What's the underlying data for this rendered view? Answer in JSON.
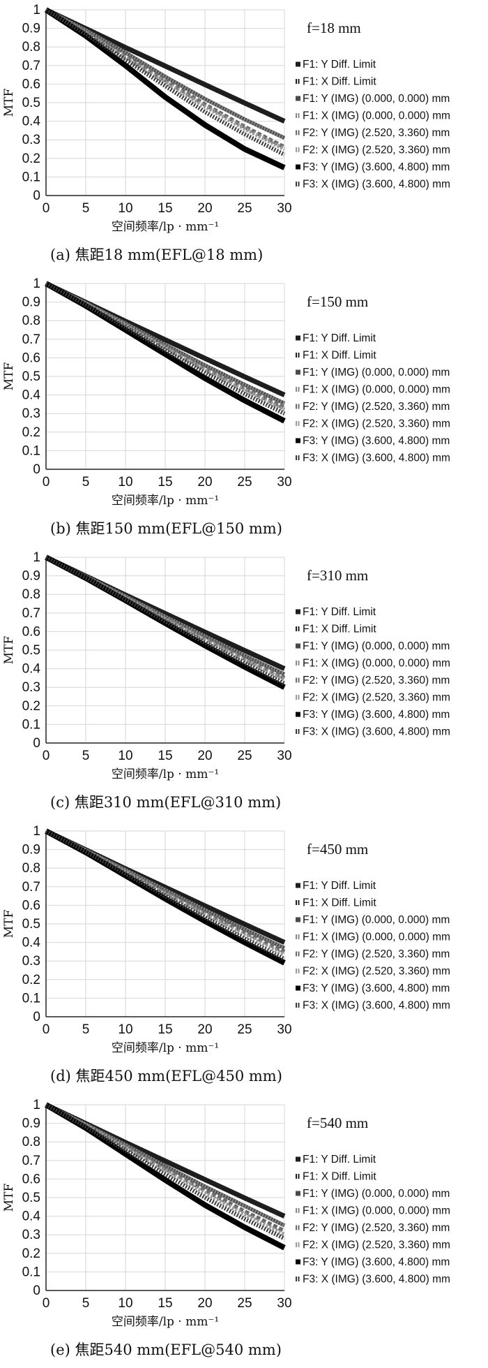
{
  "chart_data": [
    {
      "type": "line",
      "focal_label": "f=18 mm",
      "caption": "(a) 焦距18 mm(EFL@18 mm)",
      "xlabel": "空间频率/lp · mm⁻¹",
      "ylabel": "MTF",
      "xlim": [
        0,
        30
      ],
      "ylim": [
        0,
        1
      ],
      "xticks": [
        "0",
        "5",
        "10",
        "15",
        "20",
        "25",
        "30"
      ],
      "yticks": [
        "0",
        "0.1",
        "0.2",
        "0.3",
        "0.4",
        "0.5",
        "0.6",
        "0.7",
        "0.8",
        "0.9",
        "1"
      ],
      "grid": true,
      "legend_position": "right",
      "x": [
        0,
        5,
        10,
        15,
        20,
        25,
        30
      ],
      "series": [
        {
          "name": "F1: Y Diff. Limit",
          "values": [
            1,
            0.899,
            0.797,
            0.697,
            0.597,
            0.498,
            0.4
          ]
        },
        {
          "name": "F1: X Diff. Limit",
          "values": [
            1,
            0.899,
            0.797,
            0.697,
            0.597,
            0.498,
            0.4
          ]
        },
        {
          "name": "F1: Y (IMG) (0.000, 0.000) mm",
          "values": [
            1,
            0.89,
            0.77,
            0.64,
            0.52,
            0.41,
            0.31
          ]
        },
        {
          "name": "F1: X (IMG) (0.000, 0.000) mm",
          "values": [
            1,
            0.89,
            0.77,
            0.64,
            0.52,
            0.41,
            0.31
          ]
        },
        {
          "name": "F2: Y (IMG) (2.520, 3.360) mm",
          "values": [
            1,
            0.88,
            0.75,
            0.62,
            0.49,
            0.37,
            0.26
          ]
        },
        {
          "name": "F2: X (IMG) (2.520, 3.360) mm",
          "values": [
            1,
            0.875,
            0.74,
            0.61,
            0.48,
            0.36,
            0.25
          ]
        },
        {
          "name": "F3: Y (IMG) (3.600, 4.800) mm",
          "values": [
            1,
            0.86,
            0.7,
            0.53,
            0.38,
            0.25,
            0.15
          ]
        },
        {
          "name": "F3: X (IMG) (3.600, 4.800) mm",
          "values": [
            1,
            0.87,
            0.73,
            0.59,
            0.45,
            0.33,
            0.22
          ]
        }
      ]
    },
    {
      "type": "line",
      "focal_label": "f=150 mm",
      "caption": "(b) 焦距150 mm(EFL@150 mm)",
      "xlabel": "空间频率/lp · mm⁻¹",
      "ylabel": "MTF",
      "xlim": [
        0,
        30
      ],
      "ylim": [
        0,
        1
      ],
      "xticks": [
        "0",
        "5",
        "10",
        "15",
        "20",
        "25",
        "30"
      ],
      "yticks": [
        "0",
        "0.1",
        "0.2",
        "0.3",
        "0.4",
        "0.5",
        "0.6",
        "0.7",
        "0.8",
        "0.9",
        "1"
      ],
      "grid": true,
      "legend_position": "right",
      "x": [
        0,
        5,
        10,
        15,
        20,
        25,
        30
      ],
      "series": [
        {
          "name": "F1: Y Diff. Limit",
          "values": [
            1,
            0.899,
            0.797,
            0.697,
            0.597,
            0.498,
            0.4
          ]
        },
        {
          "name": "F1: X Diff. Limit",
          "values": [
            1,
            0.899,
            0.797,
            0.697,
            0.597,
            0.498,
            0.4
          ]
        },
        {
          "name": "F1: Y (IMG) (0.000, 0.000) mm",
          "values": [
            1,
            0.895,
            0.785,
            0.67,
            0.56,
            0.455,
            0.355
          ]
        },
        {
          "name": "F1: X (IMG) (0.000, 0.000) mm",
          "values": [
            1,
            0.895,
            0.785,
            0.67,
            0.56,
            0.455,
            0.355
          ]
        },
        {
          "name": "F2: Y (IMG) (2.520, 3.360) mm",
          "values": [
            1,
            0.892,
            0.777,
            0.66,
            0.545,
            0.435,
            0.33
          ]
        },
        {
          "name": "F2: X (IMG) (2.520, 3.360) mm",
          "values": [
            1,
            0.89,
            0.773,
            0.653,
            0.535,
            0.425,
            0.32
          ]
        },
        {
          "name": "F3: Y (IMG) (3.600, 4.800) mm",
          "values": [
            1,
            0.88,
            0.75,
            0.62,
            0.49,
            0.37,
            0.26
          ]
        },
        {
          "name": "F3: X (IMG) (3.600, 4.800) mm",
          "values": [
            1,
            0.885,
            0.765,
            0.64,
            0.52,
            0.405,
            0.3
          ]
        }
      ]
    },
    {
      "type": "line",
      "focal_label": "f=310 mm",
      "caption": "(c) 焦距310 mm(EFL@310 mm)",
      "xlabel": "空间频率/lp · mm⁻¹",
      "ylabel": "MTF",
      "xlim": [
        0,
        30
      ],
      "ylim": [
        0,
        1
      ],
      "xticks": [
        "0",
        "5",
        "10",
        "15",
        "20",
        "25",
        "30"
      ],
      "yticks": [
        "0",
        "0.1",
        "0.2",
        "0.3",
        "0.4",
        "0.5",
        "0.6",
        "0.7",
        "0.8",
        "0.9",
        "1"
      ],
      "grid": true,
      "legend_position": "right",
      "x": [
        0,
        5,
        10,
        15,
        20,
        25,
        30
      ],
      "series": [
        {
          "name": "F1: Y Diff. Limit",
          "values": [
            1,
            0.899,
            0.797,
            0.697,
            0.597,
            0.498,
            0.4
          ]
        },
        {
          "name": "F1: X Diff. Limit",
          "values": [
            1,
            0.899,
            0.797,
            0.697,
            0.597,
            0.498,
            0.4
          ]
        },
        {
          "name": "F1: Y (IMG) (0.000, 0.000) mm",
          "values": [
            1,
            0.897,
            0.79,
            0.68,
            0.575,
            0.47,
            0.37
          ]
        },
        {
          "name": "F1: X (IMG) (0.000, 0.000) mm",
          "values": [
            1,
            0.897,
            0.79,
            0.68,
            0.575,
            0.47,
            0.37
          ]
        },
        {
          "name": "F2: Y (IMG) (2.520, 3.360) mm",
          "values": [
            1,
            0.895,
            0.785,
            0.672,
            0.565,
            0.455,
            0.35
          ]
        },
        {
          "name": "F2: X (IMG) (2.520, 3.360) mm",
          "values": [
            1,
            0.893,
            0.78,
            0.665,
            0.555,
            0.445,
            0.34
          ]
        },
        {
          "name": "F3: Y (IMG) (3.600, 4.800) mm",
          "values": [
            1,
            0.888,
            0.768,
            0.645,
            0.525,
            0.41,
            0.3
          ]
        },
        {
          "name": "F3: X (IMG) (3.600, 4.800) mm",
          "values": [
            1,
            0.89,
            0.773,
            0.655,
            0.54,
            0.43,
            0.32
          ]
        }
      ]
    },
    {
      "type": "line",
      "focal_label": "f=450 mm",
      "caption": "(d) 焦距450 mm(EFL@450 mm)",
      "xlabel": "空间频率/lp · mm⁻¹",
      "ylabel": "MTF",
      "xlim": [
        0,
        30
      ],
      "ylim": [
        0,
        1
      ],
      "xticks": [
        "0",
        "5",
        "10",
        "15",
        "20",
        "25",
        "30"
      ],
      "yticks": [
        "0",
        "0.1",
        "0.2",
        "0.3",
        "0.4",
        "0.5",
        "0.6",
        "0.7",
        "0.8",
        "0.9",
        "1"
      ],
      "grid": true,
      "legend_position": "right",
      "x": [
        0,
        5,
        10,
        15,
        20,
        25,
        30
      ],
      "series": [
        {
          "name": "F1: Y Diff. Limit",
          "values": [
            1,
            0.899,
            0.797,
            0.697,
            0.597,
            0.498,
            0.4
          ]
        },
        {
          "name": "F1: X Diff. Limit",
          "values": [
            1,
            0.899,
            0.797,
            0.697,
            0.597,
            0.498,
            0.4
          ]
        },
        {
          "name": "F1: Y (IMG) (0.000, 0.000) mm",
          "values": [
            1,
            0.896,
            0.79,
            0.682,
            0.575,
            0.47,
            0.37
          ]
        },
        {
          "name": "F1: X (IMG) (0.000, 0.000) mm",
          "values": [
            1,
            0.896,
            0.79,
            0.682,
            0.575,
            0.47,
            0.37
          ]
        },
        {
          "name": "F2: Y (IMG) (2.520, 3.360) mm",
          "values": [
            1,
            0.894,
            0.784,
            0.672,
            0.56,
            0.455,
            0.35
          ]
        },
        {
          "name": "F2: X (IMG) (2.520, 3.360) mm",
          "values": [
            1,
            0.892,
            0.778,
            0.662,
            0.55,
            0.44,
            0.335
          ]
        },
        {
          "name": "F3: Y (IMG) (3.600, 4.800) mm",
          "values": [
            1,
            0.885,
            0.76,
            0.635,
            0.515,
            0.4,
            0.29
          ]
        },
        {
          "name": "F3: X (IMG) (3.600, 4.800) mm",
          "values": [
            1,
            0.89,
            0.77,
            0.65,
            0.535,
            0.42,
            0.31
          ]
        }
      ]
    },
    {
      "type": "line",
      "focal_label": "f=540 mm",
      "caption": "(e) 焦距540 mm(EFL@540 mm)",
      "xlabel": "空间频率/lp · mm⁻¹",
      "ylabel": "MTF",
      "xlim": [
        0,
        30
      ],
      "ylim": [
        0,
        1
      ],
      "xticks": [
        "0",
        "5",
        "10",
        "15",
        "20",
        "25",
        "30"
      ],
      "yticks": [
        "0",
        "0.1",
        "0.2",
        "0.3",
        "0.4",
        "0.5",
        "0.6",
        "0.7",
        "0.8",
        "0.9",
        "1"
      ],
      "grid": true,
      "legend_position": "right",
      "x": [
        0,
        5,
        10,
        15,
        20,
        25,
        30
      ],
      "series": [
        {
          "name": "F1: Y Diff. Limit",
          "values": [
            1,
            0.899,
            0.797,
            0.697,
            0.597,
            0.498,
            0.4
          ]
        },
        {
          "name": "F1: X Diff. Limit",
          "values": [
            1,
            0.899,
            0.797,
            0.697,
            0.597,
            0.498,
            0.4
          ]
        },
        {
          "name": "F1: Y (IMG) (0.000, 0.000) mm",
          "values": [
            1,
            0.894,
            0.784,
            0.67,
            0.56,
            0.455,
            0.35
          ]
        },
        {
          "name": "F1: X (IMG) (0.000, 0.000) mm",
          "values": [
            1,
            0.894,
            0.784,
            0.67,
            0.56,
            0.455,
            0.35
          ]
        },
        {
          "name": "F2: Y (IMG) (2.520, 3.360) mm",
          "values": [
            1,
            0.89,
            0.775,
            0.655,
            0.54,
            0.425,
            0.32
          ]
        },
        {
          "name": "F2: X (IMG) (2.520, 3.360) mm",
          "values": [
            1,
            0.888,
            0.768,
            0.645,
            0.525,
            0.41,
            0.3
          ]
        },
        {
          "name": "F3: Y (IMG) (3.600, 4.800) mm",
          "values": [
            1,
            0.875,
            0.735,
            0.595,
            0.46,
            0.34,
            0.23
          ]
        },
        {
          "name": "F3: X (IMG) (3.600, 4.800) mm",
          "values": [
            1,
            0.882,
            0.755,
            0.625,
            0.5,
            0.385,
            0.28
          ]
        }
      ]
    }
  ],
  "styles": {
    "series_colors": [
      "#1e1e1e",
      "#1e1e1e",
      "#4a4a4a",
      "#8a8a8a",
      "#6a6a6a",
      "#9a9a9a",
      "#000000",
      "#3a3a3a"
    ],
    "grid_color": "#d6d6d6",
    "plot_background": "#ffffff"
  }
}
